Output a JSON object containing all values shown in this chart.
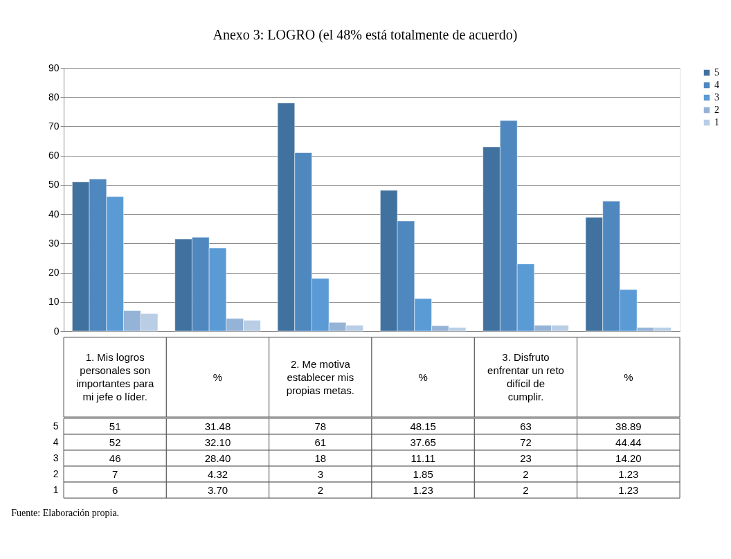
{
  "chart_data": {
    "type": "bar",
    "title": "Anexo 3: LOGRO (el 48% está totalmente de acuerdo)",
    "categories": [
      "1. Mis logros personales son importantes para mi jefe o líder.",
      "%",
      "2. Me motiva establecer mis propias metas.",
      "%",
      "3. Disfruto enfrentar un reto difícil de cumplir.",
      "%"
    ],
    "series": [
      {
        "name": "5",
        "color": "#41729f",
        "values": [
          51,
          31.48,
          78,
          48.15,
          63,
          38.89
        ],
        "value_labels": [
          "51",
          "31.48",
          "78",
          "48.15",
          "63",
          "38.89"
        ]
      },
      {
        "name": "4",
        "color": "#4f87bf",
        "values": [
          52,
          32.1,
          61,
          37.65,
          72,
          44.44
        ],
        "value_labels": [
          "52",
          "32.10",
          "61",
          "37.65",
          "72",
          "44.44"
        ]
      },
      {
        "name": "3",
        "color": "#5b9bd5",
        "values": [
          46,
          28.4,
          18,
          11.11,
          23,
          14.2
        ],
        "value_labels": [
          "46",
          "28.40",
          "18",
          "11.11",
          "23",
          "14.20"
        ]
      },
      {
        "name": "2",
        "color": "#95b3d7",
        "values": [
          7,
          4.32,
          3,
          1.85,
          2,
          1.23
        ],
        "value_labels": [
          "7",
          "4.32",
          "3",
          "1.85",
          "2",
          "1.23"
        ]
      },
      {
        "name": "1",
        "color": "#b9cde5",
        "values": [
          6,
          3.7,
          2,
          1.23,
          2,
          1.23
        ],
        "value_labels": [
          "6",
          "3.70",
          "2",
          "1.23",
          "2",
          "1.23"
        ]
      }
    ],
    "ylim": [
      0,
      90
    ],
    "yticks": [
      0,
      10,
      20,
      30,
      40,
      50,
      60,
      70,
      80,
      90
    ],
    "grid": "y",
    "legend": "right",
    "annotations": [
      "Fuente: Elaboración propia."
    ]
  }
}
